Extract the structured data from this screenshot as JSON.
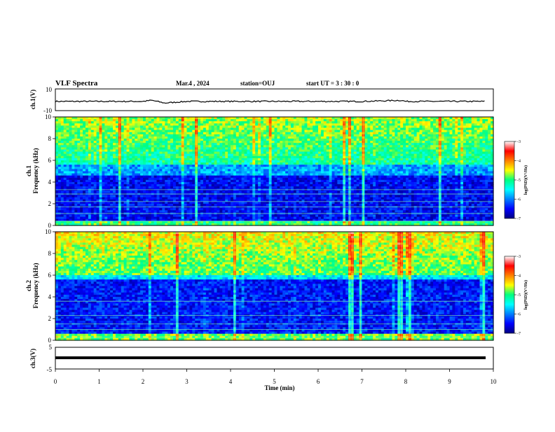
{
  "header": {
    "title": "VLF Spectra",
    "date": "Mar.4 , 2024",
    "station": "station=OUJ",
    "start": "start UT =  3 : 30 : 0"
  },
  "chart_data": [
    {
      "type": "line",
      "panel": "ch1_waveform",
      "ylabel": "ch.1(V)",
      "yticks": [
        "10",
        "-10"
      ],
      "ylim": [
        -10,
        10
      ],
      "x": [
        0,
        1,
        2,
        2.2,
        2.5,
        3,
        4,
        5,
        6,
        7,
        7.9,
        8,
        9,
        9.8
      ],
      "values": [
        -1.5,
        -1.5,
        -1.5,
        -0.5,
        -3,
        -1.5,
        -1.5,
        -1.5,
        -1.5,
        -1.5,
        -0.5,
        -1.5,
        -1.5,
        -1.5
      ]
    },
    {
      "type": "heatmap",
      "panel": "ch1_spectrogram",
      "ylabel": "ch.1\nFrequency (kHz)",
      "yticks": [
        "0",
        "2",
        "4",
        "6",
        "8",
        "10"
      ],
      "ylim": [
        0,
        10
      ],
      "xlim": [
        0,
        10
      ],
      "colorbar_label": "log(PSD)(V²/Hz)",
      "colorbar_ticks": [
        "-3",
        "-4",
        "-5",
        "-6",
        "-7"
      ],
      "colorbar_range": [
        -7,
        -3
      ],
      "features": [
        "broadband VLF noise above ~5.5 kHz, log(PSD) about -4 to -5",
        "low intensity band between ~0.5 and 4.5 kHz, log(PSD) about -6 to -7",
        "narrowband horizontal lines near 0.4, 1.1, 1.7, 2.2, 2.9, 3.3 kHz",
        "frequent vertical impulsive sferics across full band"
      ]
    },
    {
      "type": "heatmap",
      "panel": "ch2_spectrogram",
      "ylabel": "ch.2\nFrequency (kHz)",
      "yticks": [
        "0",
        "2",
        "4",
        "6",
        "8",
        "10"
      ],
      "ylim": [
        0,
        10
      ],
      "xlim": [
        0,
        10
      ],
      "colorbar_label": "log(PSD)(V²/Hz)",
      "colorbar_ticks": [
        "-3",
        "-4",
        "-5",
        "-6",
        "-7"
      ],
      "colorbar_range": [
        -7,
        -3
      ],
      "features": [
        "strong broadband emissions above ~6 kHz, log(PSD) about -3.5 to -4.5",
        "low intensity region between ~0.5 and 5.5 kHz",
        "bright band near 0.3 kHz",
        "frequent vertical impulsive sferics"
      ]
    },
    {
      "type": "line",
      "panel": "ch3_waveform",
      "ylabel": "ch.3(V)",
      "yticks": [
        "5",
        "0",
        "-5"
      ],
      "ylim": [
        -5,
        5
      ],
      "x": [
        0,
        9.8
      ],
      "values": [
        -1.5,
        -1.5
      ]
    }
  ],
  "xaxis": {
    "label": "Time (min)",
    "ticks": [
      "0",
      "1",
      "2",
      "3",
      "4",
      "5",
      "6",
      "7",
      "8",
      "9",
      "10"
    ],
    "range": [
      0,
      10
    ]
  }
}
